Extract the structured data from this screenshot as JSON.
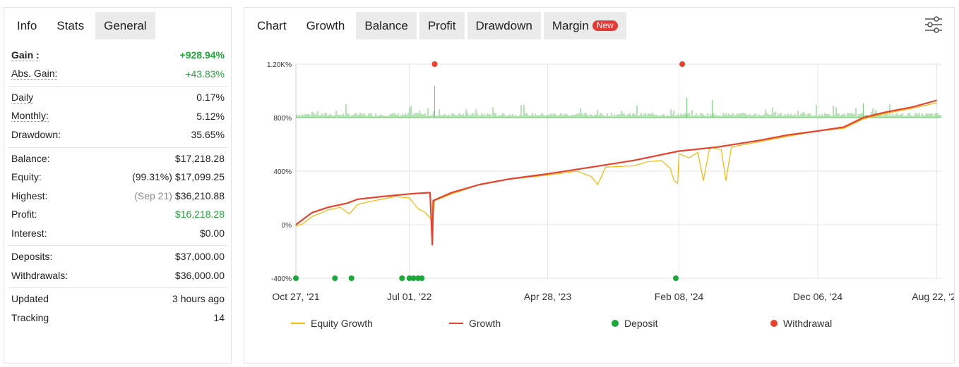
{
  "left_panel": {
    "tabs": [
      {
        "label": "Info",
        "active": false
      },
      {
        "label": "Stats",
        "active": true
      },
      {
        "label": "General",
        "active": false
      }
    ],
    "stats": {
      "gain": {
        "label": "Gain :",
        "value": "+928.94%"
      },
      "abs_gain": {
        "label": "Abs. Gain:",
        "value": "+43.83%"
      },
      "daily": {
        "label": "Daily",
        "value": "0.17%"
      },
      "monthly": {
        "label": "Monthly:",
        "value": "5.12%"
      },
      "drawdown": {
        "label": "Drawdown:",
        "value": "35.65%"
      },
      "balance": {
        "label": "Balance:",
        "value": "$17,218.28"
      },
      "equity": {
        "label": "Equity:",
        "sub": "(99.31%)",
        "value": "$17,099.25"
      },
      "highest": {
        "label": "Highest:",
        "sub": "(Sep 21)",
        "value": "$36,210.88"
      },
      "profit": {
        "label": "Profit:",
        "value": "$16,218.28"
      },
      "interest": {
        "label": "Interest:",
        "value": "$0.00"
      },
      "deposits": {
        "label": "Deposits:",
        "value": "$37,000.00"
      },
      "withdrawals": {
        "label": "Withdrawals:",
        "value": "$36,000.00"
      },
      "updated": {
        "label": "Updated",
        "value": "3 hours ago"
      },
      "tracking": {
        "label": "Tracking",
        "value": "14"
      }
    }
  },
  "right_panel": {
    "tabs": [
      {
        "label": "Chart",
        "active": false
      },
      {
        "label": "Growth",
        "active": true
      },
      {
        "label": "Balance",
        "active": false
      },
      {
        "label": "Profit",
        "active": false
      },
      {
        "label": "Drawdown",
        "active": false
      },
      {
        "label": "Margin",
        "active": false
      }
    ],
    "margin_badge": "New",
    "settings_icon": "sliders-icon"
  },
  "colors": {
    "equity": "#f5b800",
    "growth": "#e8412c",
    "deposit": "#1aa83a",
    "withdrawal": "#e8412c",
    "volume": "#6cc76c",
    "gain_green": "#22a83a"
  },
  "chart_data": {
    "type": "line",
    "x_ticks": [
      "Oct 27, '21",
      "Jul 01, '22",
      "Apr 28, '23",
      "Feb 08, '24",
      "Dec 06, '24",
      "Aug 22, '25"
    ],
    "y_ticks": [
      "1.20K%",
      "800%",
      "400%",
      "0%",
      "-400%"
    ],
    "ylim": [
      -400,
      1200
    ],
    "grid": true,
    "legend_position": "bottom",
    "series": [
      {
        "name": "Equity Growth",
        "points": [
          [
            "2021-10-27",
            -10
          ],
          [
            "2021-11-10",
            5
          ],
          [
            "2021-12-01",
            60
          ],
          [
            "2022-01-05",
            110
          ],
          [
            "2022-02-01",
            130
          ],
          [
            "2022-02-20",
            80
          ],
          [
            "2022-03-10",
            150
          ],
          [
            "2022-04-01",
            170
          ],
          [
            "2022-05-01",
            190
          ],
          [
            "2022-06-01",
            210
          ],
          [
            "2022-07-01",
            200
          ],
          [
            "2022-07-20",
            120
          ],
          [
            "2022-08-05",
            90
          ],
          [
            "2022-08-20",
            30
          ],
          [
            "2022-08-25",
            180
          ],
          [
            "2022-10-01",
            230
          ],
          [
            "2022-12-01",
            300
          ],
          [
            "2023-02-01",
            340
          ],
          [
            "2023-04-28",
            370
          ],
          [
            "2023-07-01",
            400
          ],
          [
            "2023-08-01",
            360
          ],
          [
            "2023-08-15",
            300
          ],
          [
            "2023-09-01",
            430
          ],
          [
            "2023-11-01",
            440
          ],
          [
            "2023-12-01",
            470
          ],
          [
            "2024-01-01",
            480
          ],
          [
            "2024-01-20",
            420
          ],
          [
            "2024-01-28",
            330
          ],
          [
            "2024-02-05",
            310
          ],
          [
            "2024-02-08",
            530
          ],
          [
            "2024-03-01",
            500
          ],
          [
            "2024-03-20",
            540
          ],
          [
            "2024-04-01",
            330
          ],
          [
            "2024-04-15",
            580
          ],
          [
            "2024-05-10",
            560
          ],
          [
            "2024-05-20",
            330
          ],
          [
            "2024-06-01",
            580
          ],
          [
            "2024-08-01",
            620
          ],
          [
            "2024-10-01",
            660
          ],
          [
            "2024-12-06",
            700
          ],
          [
            "2025-02-01",
            720
          ],
          [
            "2025-03-15",
            790
          ],
          [
            "2025-05-01",
            830
          ],
          [
            "2025-07-01",
            870
          ],
          [
            "2025-08-22",
            910
          ]
        ]
      },
      {
        "name": "Growth",
        "points": [
          [
            "2021-10-27",
            0
          ],
          [
            "2021-12-01",
            90
          ],
          [
            "2022-01-05",
            130
          ],
          [
            "2022-02-15",
            160
          ],
          [
            "2022-03-10",
            190
          ],
          [
            "2022-05-01",
            210
          ],
          [
            "2022-07-01",
            230
          ],
          [
            "2022-08-15",
            240
          ],
          [
            "2022-08-20",
            -150
          ],
          [
            "2022-08-22",
            180
          ],
          [
            "2022-10-01",
            240
          ],
          [
            "2022-12-01",
            300
          ],
          [
            "2023-02-01",
            340
          ],
          [
            "2023-04-28",
            380
          ],
          [
            "2023-08-01",
            430
          ],
          [
            "2023-11-01",
            480
          ],
          [
            "2024-02-08",
            550
          ],
          [
            "2024-05-01",
            580
          ],
          [
            "2024-08-01",
            630
          ],
          [
            "2024-10-01",
            670
          ],
          [
            "2024-12-06",
            700
          ],
          [
            "2025-02-01",
            730
          ],
          [
            "2025-03-15",
            800
          ],
          [
            "2025-05-01",
            840
          ],
          [
            "2025-07-01",
            880
          ],
          [
            "2025-08-22",
            929
          ]
        ]
      }
    ],
    "deposits": [
      "2021-10-27",
      "2022-01-20",
      "2022-02-25",
      "2022-06-15",
      "2022-07-01",
      "2022-07-10",
      "2022-07-20",
      "2022-07-28",
      "2024-02-01"
    ],
    "withdrawals": [
      "2022-08-25",
      "2024-02-15"
    ],
    "legend": [
      {
        "label": "Equity Growth",
        "marker": "line"
      },
      {
        "label": "Growth",
        "marker": "line"
      },
      {
        "label": "Deposit",
        "marker": "dot"
      },
      {
        "label": "Withdrawal",
        "marker": "dot"
      }
    ]
  }
}
